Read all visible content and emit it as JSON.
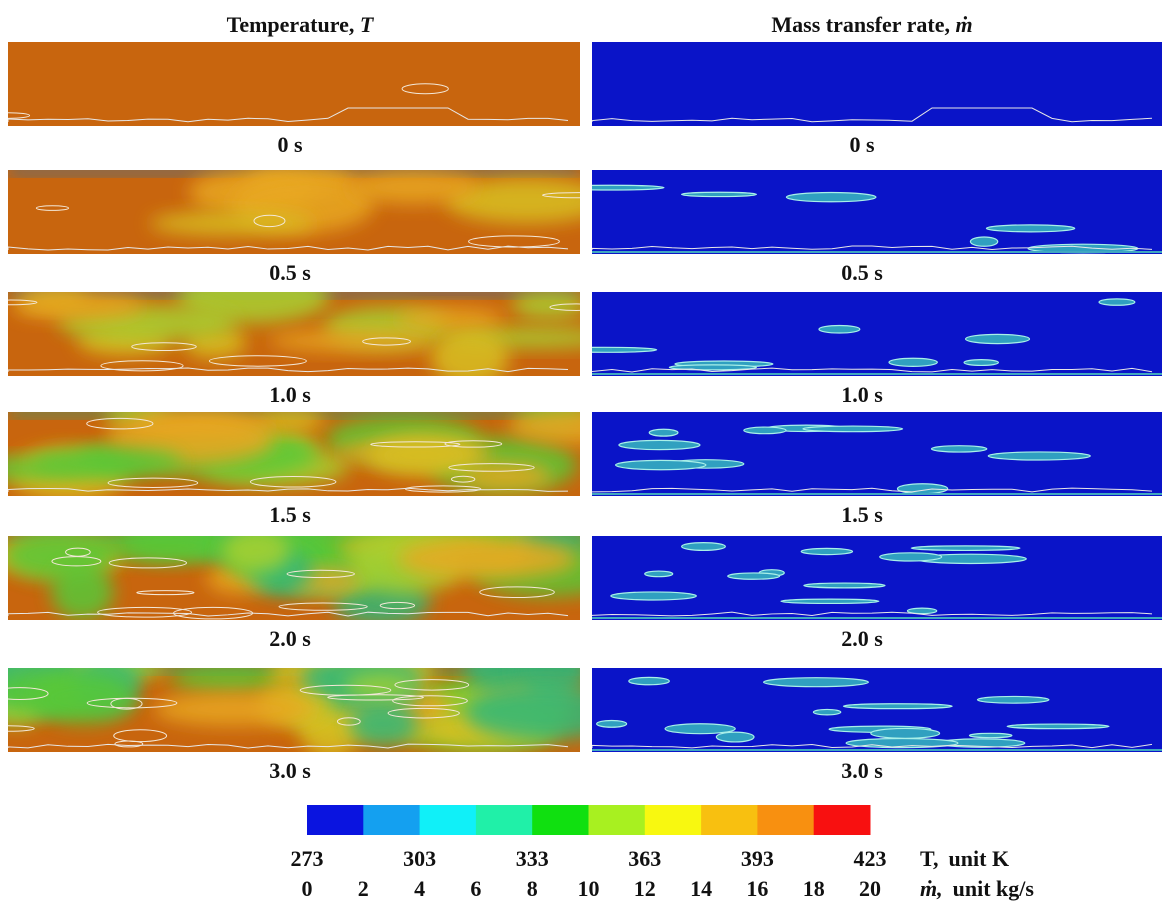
{
  "columns": [
    {
      "title": "Temperature, ",
      "symbol": "T"
    },
    {
      "title": "Mass transfer rate, ",
      "symbol": "ṁ"
    }
  ],
  "times": [
    "0 s",
    "0.5 s",
    "1.0 s",
    "1.5 s",
    "2.0 s",
    "3.0 s"
  ],
  "colorbar": {
    "colors": [
      "#0a14e0",
      "#14a0f0",
      "#10f0f8",
      "#20f0a8",
      "#10e010",
      "#a8f020",
      "#f8f810",
      "#f8c010",
      "#f89010",
      "#f81010"
    ],
    "temperature": {
      "ticks": [
        273,
        303,
        333,
        363,
        393,
        423
      ],
      "lim": [
        273,
        423
      ],
      "symbol": "T,",
      "unit": "unit K"
    },
    "mass_rate": {
      "ticks": [
        0,
        2,
        4,
        6,
        8,
        10,
        12,
        14,
        16,
        18,
        20
      ],
      "lim": [
        0,
        20
      ],
      "symbol": "ṁ,",
      "unit": "unit kg/s"
    }
  }
}
